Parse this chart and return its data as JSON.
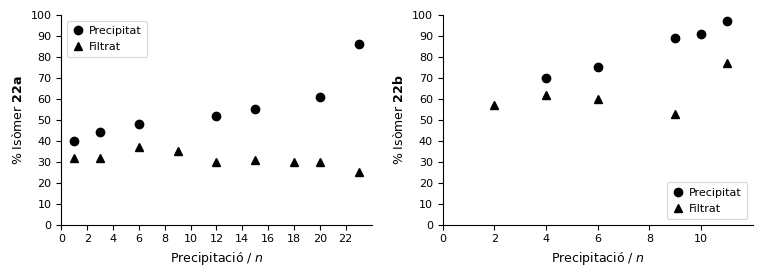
{
  "left": {
    "ylabel_prefix": "% Isòmer ",
    "ylabel_bold": "22a",
    "precipitat_x": [
      1,
      3,
      6,
      12,
      15,
      20,
      23
    ],
    "precipitat_y": [
      40,
      44,
      48,
      52,
      55,
      61,
      86
    ],
    "filtrat_x": [
      1,
      3,
      6,
      9,
      12,
      15,
      18,
      20,
      23
    ],
    "filtrat_y": [
      32,
      32,
      37,
      35,
      30,
      31,
      30,
      30,
      25
    ],
    "xlim": [
      0,
      24
    ],
    "ylim": [
      0,
      100
    ],
    "xticks": [
      0,
      2,
      4,
      6,
      8,
      10,
      12,
      14,
      16,
      18,
      20,
      22
    ],
    "yticks": [
      0,
      10,
      20,
      30,
      40,
      50,
      60,
      70,
      80,
      90,
      100
    ],
    "legend_loc": "upper left"
  },
  "right": {
    "ylabel_prefix": "% Isòmer ",
    "ylabel_bold": "22b",
    "precipitat_x": [
      4,
      6,
      9,
      10,
      11
    ],
    "precipitat_y": [
      70,
      75,
      89,
      91,
      97
    ],
    "filtrat_x": [
      2,
      4,
      6,
      9,
      11
    ],
    "filtrat_y": [
      57,
      62,
      60,
      53,
      77
    ],
    "xlim": [
      0,
      12
    ],
    "ylim": [
      0,
      100
    ],
    "xticks": [
      0,
      2,
      4,
      6,
      8,
      10
    ],
    "yticks": [
      0,
      10,
      20,
      30,
      40,
      50,
      60,
      70,
      80,
      90,
      100
    ],
    "legend_loc": "lower right"
  },
  "xlabel_regular": "Precipitació / ",
  "xlabel_italic": "n",
  "marker_circle": "o",
  "marker_triangle": "^",
  "markersize": 6,
  "color": "black",
  "label_precipitat": "Precipitat",
  "label_filtrat": "Filtrat",
  "fontsize_label": 9,
  "fontsize_tick": 8,
  "fontsize_legend": 8
}
